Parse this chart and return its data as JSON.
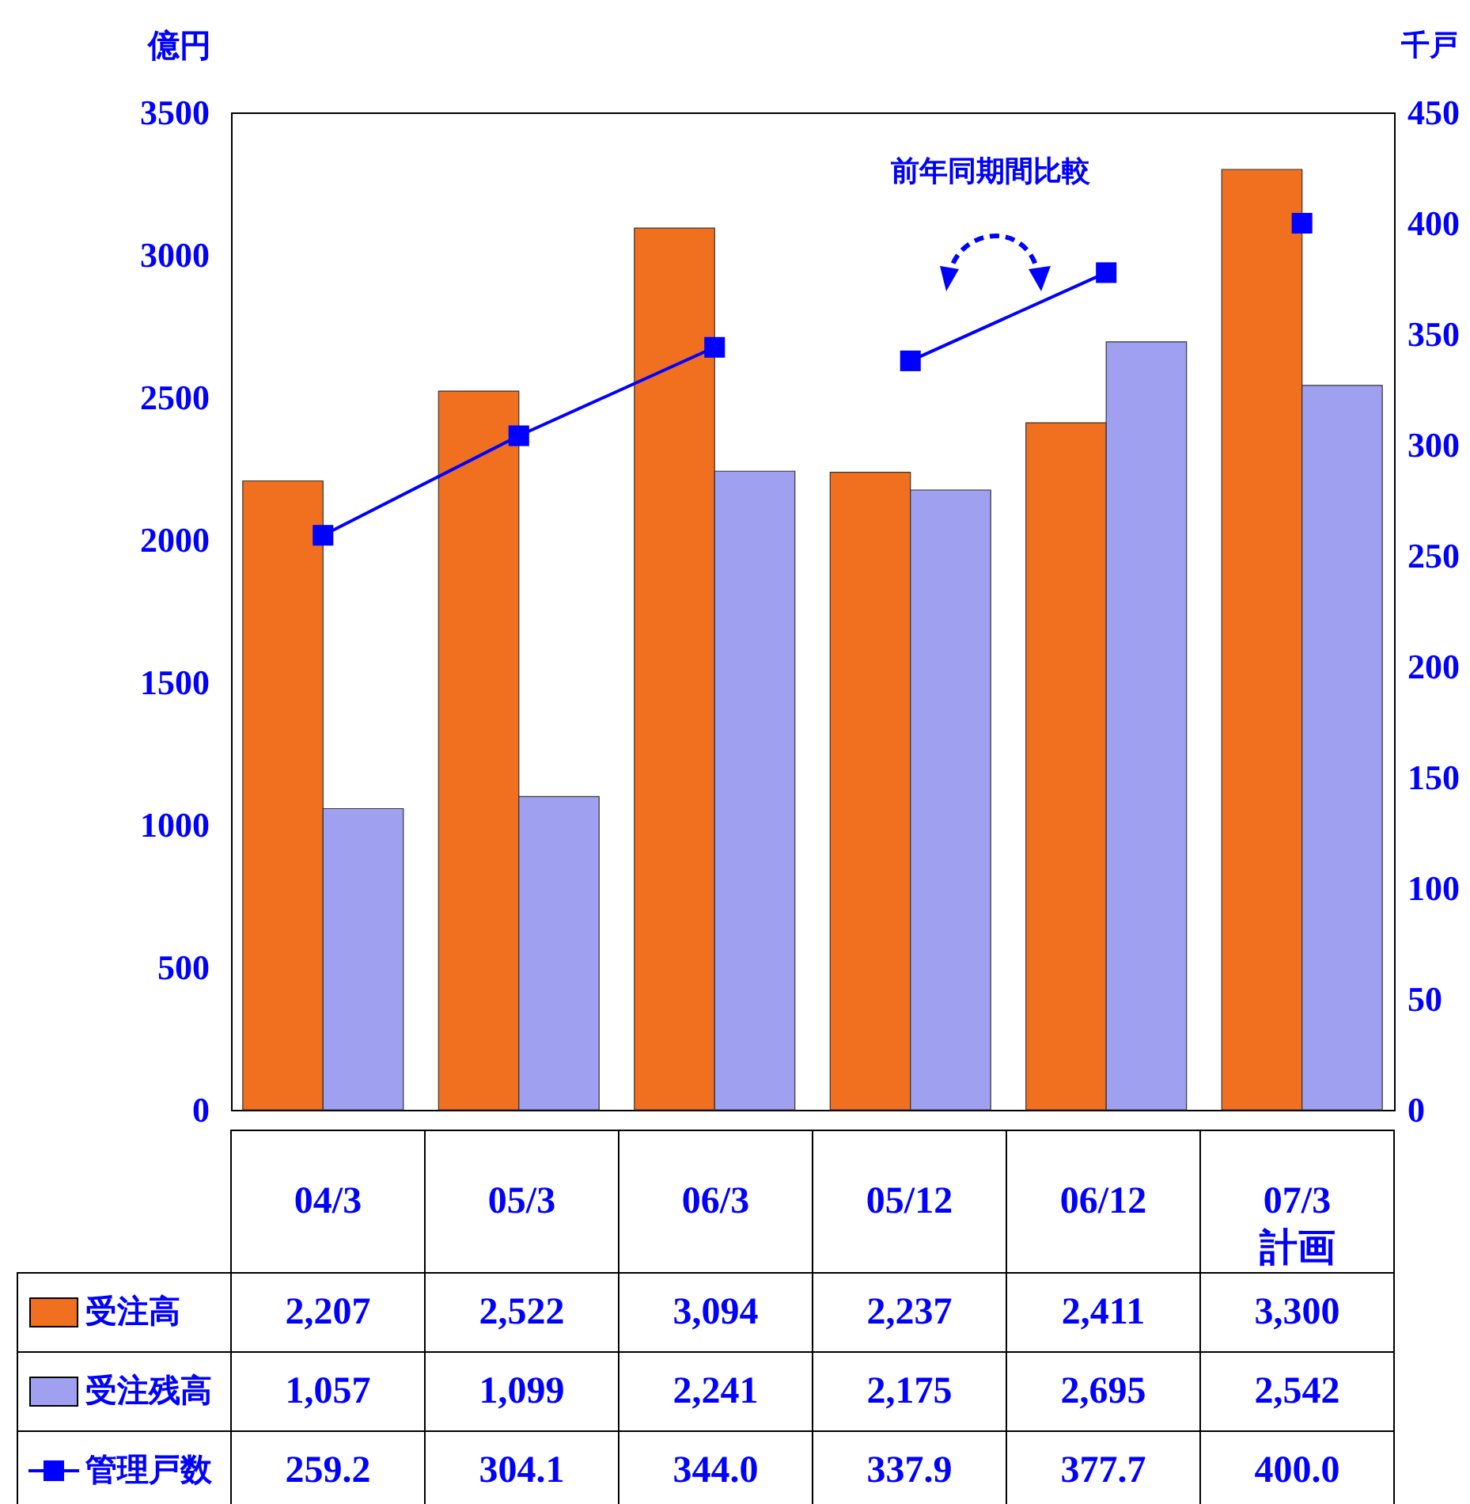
{
  "chart_data": {
    "type": "bar",
    "ylabel": "億円",
    "y2label": "千戸",
    "categories": [
      "04/3",
      "05/3",
      "06/3",
      "05/12",
      "06/12",
      "07/3\n計画"
    ],
    "series": [
      {
        "name": "受注高",
        "type": "bar",
        "color": "#f07020",
        "values": [
          2207,
          2522,
          3094,
          2237,
          2411,
          3300
        ],
        "value_labels": [
          "2,207",
          "2,522",
          "3,094",
          "2,237",
          "2,411",
          "3,300"
        ]
      },
      {
        "name": "受注残高",
        "type": "bar",
        "color": "#a0a0f0",
        "values": [
          1057,
          1099,
          2241,
          2175,
          2695,
          2542
        ],
        "value_labels": [
          "1,057",
          "1,099",
          "2,241",
          "2,175",
          "2,695",
          "2,542"
        ]
      },
      {
        "name": "管理戸数",
        "type": "line",
        "axis": "y2",
        "color": "#0000ff",
        "values": [
          259.2,
          304.1,
          344.0,
          null,
          null,
          400.0
        ],
        "value_labels": [
          "259.2",
          "304.1",
          "344.0",
          "337.9",
          "377.7",
          "400.0"
        ]
      },
      {
        "type": "line",
        "axis": "y2",
        "color": "#0000ff",
        "values": [
          null,
          null,
          null,
          337.9,
          377.7,
          null
        ]
      }
    ],
    "ylim": [
      0,
      3500
    ],
    "yticks": [
      0,
      500,
      1000,
      1500,
      2000,
      2500,
      3000,
      3500
    ],
    "y2lim": [
      0,
      450
    ],
    "y2ticks": [
      0,
      50,
      100,
      150,
      200,
      250,
      300,
      350,
      400,
      450
    ],
    "marker": "square",
    "line_style": "solid",
    "legend": "bottom",
    "grid": false,
    "annotations": [
      "前年同期間比較"
    ]
  }
}
